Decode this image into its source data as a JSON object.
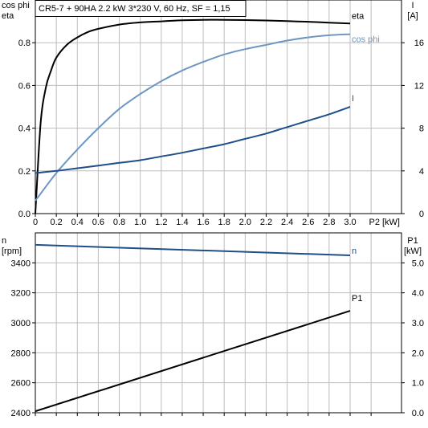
{
  "chart_data": [
    {
      "type": "line",
      "title": "CR5-7 + 90HA   2.2 kW   3*230 V, 60 Hz, SF = 1,15",
      "x_label": "P2 [kW]",
      "x_ticks": [
        "0",
        "0.2",
        "0.4",
        "0.6",
        "0.8",
        "1.0",
        "1.2",
        "1.4",
        "1.6",
        "1.8",
        "2.0",
        "2.2",
        "2.4",
        "2.6",
        "2.8",
        "3.0"
      ],
      "xlim": [
        0,
        3.4
      ],
      "y_left_label": [
        "cos phi",
        "eta"
      ],
      "y_left_ticks": [
        "0.0",
        "0.2",
        "0.4",
        "0.6",
        "0.8"
      ],
      "y_left_lim": [
        0,
        1.0
      ],
      "y_right_label": [
        "I",
        "[A]"
      ],
      "y_right_ticks": [
        "0",
        "4",
        "8",
        "12",
        "16"
      ],
      "y_right_lim": [
        0,
        20
      ],
      "grid": true,
      "series": [
        {
          "name": "eta",
          "axis": "left",
          "color": "#000000",
          "x": [
            0,
            0.05,
            0.1,
            0.15,
            0.2,
            0.3,
            0.4,
            0.5,
            0.6,
            0.8,
            1.0,
            1.2,
            1.4,
            1.6,
            1.8,
            2.0,
            2.2,
            2.4,
            2.6,
            2.8,
            3.0
          ],
          "y": [
            0,
            0.42,
            0.59,
            0.67,
            0.73,
            0.79,
            0.825,
            0.85,
            0.865,
            0.885,
            0.895,
            0.9,
            0.905,
            0.907,
            0.907,
            0.906,
            0.904,
            0.901,
            0.898,
            0.894,
            0.89
          ]
        },
        {
          "name": "cos phi",
          "axis": "left",
          "color": "#6d97c2",
          "x": [
            0,
            0.2,
            0.4,
            0.6,
            0.8,
            1.0,
            1.2,
            1.4,
            1.6,
            1.8,
            2.0,
            2.2,
            2.4,
            2.6,
            2.8,
            3.0
          ],
          "y": [
            0.06,
            0.19,
            0.3,
            0.4,
            0.49,
            0.56,
            0.62,
            0.67,
            0.71,
            0.745,
            0.77,
            0.79,
            0.81,
            0.825,
            0.835,
            0.84
          ]
        },
        {
          "name": "I",
          "axis": "right",
          "color": "#1e4f8a",
          "x": [
            0,
            0.2,
            0.4,
            0.6,
            0.8,
            1.0,
            1.2,
            1.4,
            1.6,
            1.8,
            2.0,
            2.2,
            2.4,
            2.6,
            2.8,
            3.0
          ],
          "y": [
            3.8,
            4.0,
            4.25,
            4.5,
            4.75,
            5.0,
            5.35,
            5.7,
            6.1,
            6.5,
            7.0,
            7.5,
            8.1,
            8.7,
            9.3,
            10.0
          ]
        }
      ]
    },
    {
      "type": "line",
      "x_ticks": [],
      "xlim": [
        0,
        3.4
      ],
      "y_left_label": [
        "n",
        "[rpm]"
      ],
      "y_left_ticks": [
        "2400",
        "2600",
        "2800",
        "3000",
        "3200",
        "3400"
      ],
      "y_left_lim": [
        2400,
        3600
      ],
      "y_right_label": [
        "P1",
        "[kW]"
      ],
      "y_right_ticks": [
        "0.0",
        "1.0",
        "2.0",
        "3.0",
        "4.0",
        "5.0"
      ],
      "y_right_lim": [
        0,
        6
      ],
      "grid": true,
      "series": [
        {
          "name": "n",
          "axis": "left",
          "color": "#1e4f8a",
          "x": [
            0,
            3.0
          ],
          "y": [
            3520,
            3450
          ]
        },
        {
          "name": "P1",
          "axis": "right",
          "color": "#000000",
          "x": [
            0,
            3.0
          ],
          "y": [
            0.05,
            3.4
          ]
        }
      ]
    }
  ]
}
